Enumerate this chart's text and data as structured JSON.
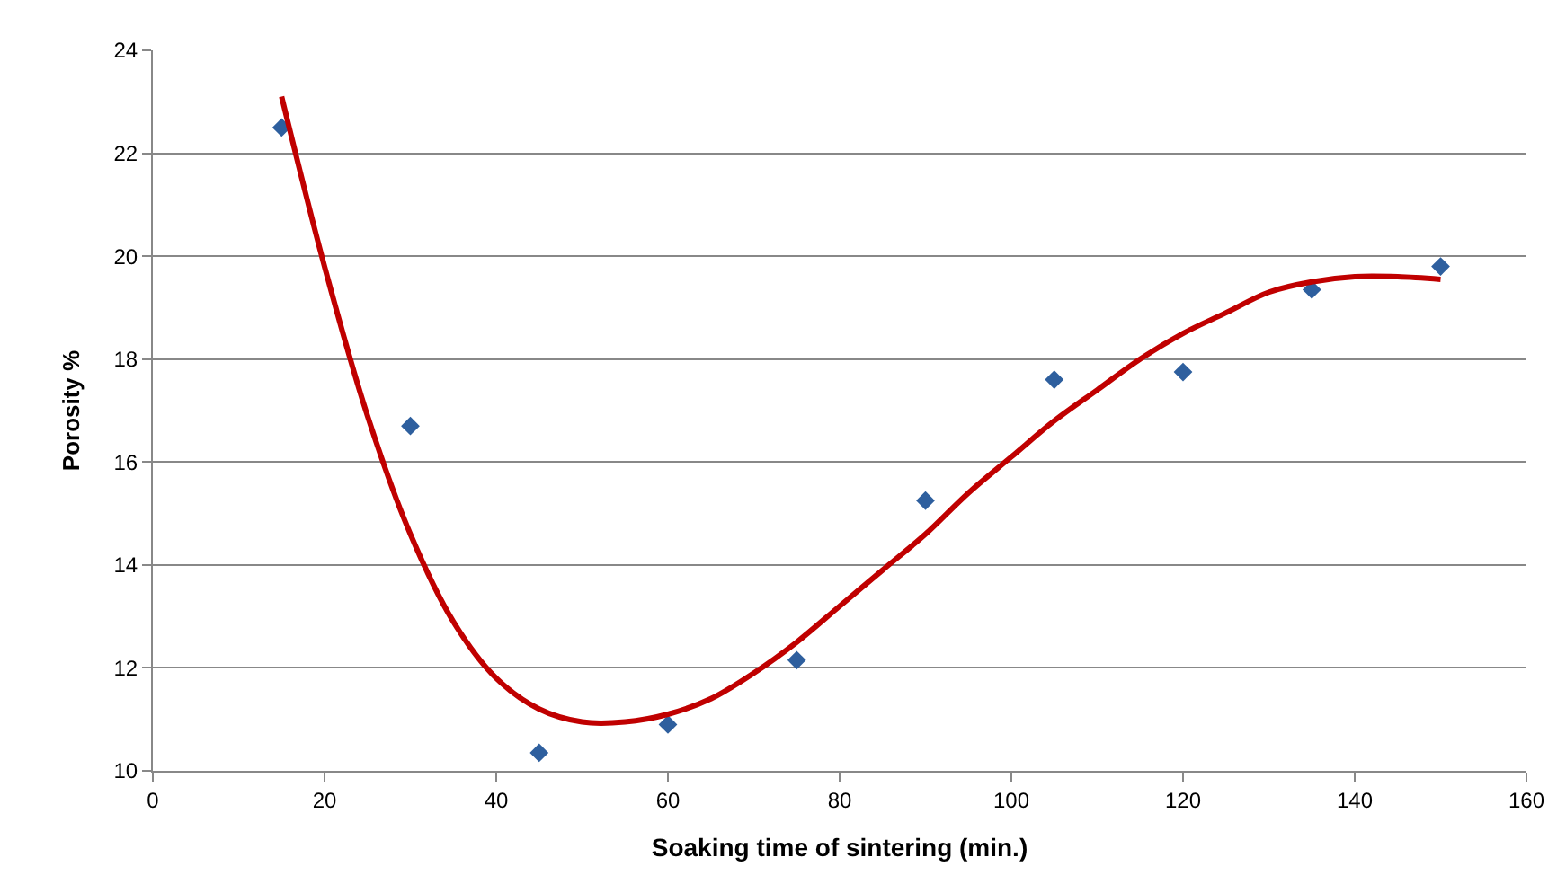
{
  "chart_data": {
    "type": "scatter",
    "xlabel": "Soaking time of sintering (min.)",
    "ylabel": "Porosity %",
    "xlim": [
      0,
      160
    ],
    "xticks": [
      0,
      20,
      40,
      60,
      80,
      100,
      120,
      140,
      160
    ],
    "ylim": [
      10,
      24
    ],
    "yticks": [
      10,
      12,
      14,
      16,
      18,
      20,
      22,
      24
    ],
    "grid": "y",
    "marker": "diamond",
    "series": [
      {
        "color": "#2e5f9e",
        "x": [
          15,
          30,
          45,
          60,
          75,
          90,
          105,
          120,
          135,
          150
        ],
        "values": [
          22.5,
          16.7,
          10.35,
          10.9,
          12.15,
          15.25,
          17.6,
          17.75,
          19.35,
          19.8
        ]
      },
      {
        "type": "line",
        "marker": "none",
        "color": "#c00000",
        "x": [
          15,
          20,
          25,
          30,
          35,
          40,
          45,
          50,
          55,
          60,
          65,
          70,
          75,
          80,
          85,
          90,
          95,
          100,
          105,
          110,
          115,
          120,
          125,
          130,
          135,
          140,
          145,
          150
        ],
        "values": [
          23.1,
          19.8,
          16.9,
          14.6,
          12.9,
          11.8,
          11.2,
          10.95,
          10.95,
          11.1,
          11.4,
          11.9,
          12.5,
          13.2,
          13.9,
          14.6,
          15.4,
          16.1,
          16.8,
          17.4,
          18.0,
          18.5,
          18.9,
          19.3,
          19.5,
          19.6,
          19.6,
          19.55
        ]
      }
    ]
  }
}
